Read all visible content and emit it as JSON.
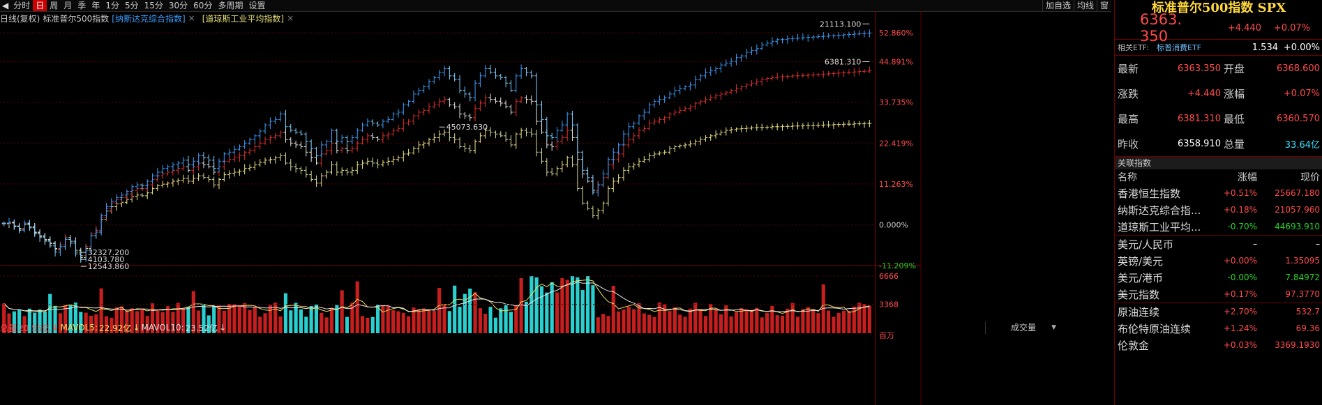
{
  "toolbar": {
    "periods": [
      "分时",
      "日",
      "周",
      "月",
      "季",
      "年",
      "1分",
      "5分",
      "15分",
      "30分",
      "60分",
      "多周期",
      "设置"
    ],
    "active": "日",
    "right": [
      "加自选",
      "均线",
      "窗"
    ]
  },
  "subbar": {
    "mode": "日线(复权)",
    "main_index": "标准普尔500指数",
    "overlay1": "[纳斯达克综合指数]",
    "overlay2": "[道琼斯工业平均指数]",
    "close_glyph": "×"
  },
  "chart_data": {
    "type": "line",
    "title": "",
    "yaxis_ticks": [
      "52.860%",
      "44.891%",
      "33.735%",
      "22.419%",
      "11.263%",
      "0.000%",
      "-11.209%"
    ],
    "ylim_pct": [
      -11.209,
      52.86
    ],
    "n_bars": 170,
    "series": [
      {
        "name": "纳斯达克综合指数",
        "color": "#3aa0ff",
        "values": [
          0.5,
          0.8,
          -0.5,
          -1.5,
          0.5,
          -0.8,
          -2.5,
          -3.5,
          -4.5,
          -5.8,
          -7.5,
          -6.0,
          -4.0,
          -5.0,
          -8.0,
          -9.5,
          -7.0,
          -3.0,
          -2.0,
          2.5,
          5.0,
          6.5,
          7.5,
          8.2,
          9.2,
          10.5,
          11.0,
          10.8,
          12.0,
          13.5,
          14.5,
          15.5,
          16.0,
          16.5,
          17.0,
          17.8,
          16.5,
          17.5,
          19.0,
          18.5,
          17.8,
          15.5,
          17.5,
          19.5,
          20.0,
          20.8,
          21.5,
          22.5,
          23.5,
          24.5,
          25.8,
          27.5,
          28.5,
          29.0,
          30.5,
          27.0,
          26.0,
          25.5,
          25.0,
          23.0,
          21.0,
          19.0,
          22.0,
          23.0,
          26.0,
          23.0,
          24.0,
          23.0,
          24.0,
          26.0,
          27.5,
          28.5,
          28.0,
          27.5,
          28.5,
          29.0,
          30.5,
          31.0,
          33.0,
          34.0,
          36.0,
          37.0,
          38.0,
          39.5,
          40.5,
          42.0,
          43.0,
          41.0,
          40.0,
          37.0,
          36.0,
          35.0,
          39.0,
          41.0,
          43.0,
          42.0,
          41.0,
          40.5,
          39.0,
          37.0,
          41.0,
          43.0,
          42.0,
          41.0,
          33.0,
          29.0,
          24.5,
          24.0,
          26.0,
          27.5,
          30.5,
          27.5,
          20.0,
          15.0,
          13.0,
          9.0,
          11.0,
          14.0,
          18.0,
          20.0,
          22.0,
          25.0,
          27.0,
          28.0,
          30.0,
          31.0,
          33.0,
          34.0,
          34.5,
          35.0,
          36.0,
          37.0,
          37.5,
          38.0,
          38.5,
          40.0,
          41.0,
          42.0,
          42.5,
          43.0,
          44.0,
          44.5,
          45.0,
          46.0,
          46.5,
          47.5,
          48.0,
          48.5,
          49.5,
          50.0,
          50.5,
          51.0,
          51.0,
          51.2,
          51.3,
          51.4,
          51.5,
          51.6,
          51.7,
          51.8,
          51.9,
          52.0,
          52.1,
          52.2,
          52.3,
          52.4,
          52.5,
          52.6,
          52.7,
          52.8
        ]
      },
      {
        "name": "标准普尔500指数",
        "color": "#e23030",
        "values": [
          0.5,
          0.6,
          -0.3,
          -1.0,
          0.3,
          -0.5,
          -2.0,
          -3.0,
          -4.0,
          -5.0,
          -6.5,
          -5.5,
          -3.5,
          -4.5,
          -7.0,
          -8.5,
          -6.0,
          -2.5,
          -1.5,
          2.0,
          4.5,
          6.0,
          7.0,
          7.5,
          8.5,
          9.5,
          10.0,
          10.0,
          11.0,
          12.5,
          13.5,
          14.0,
          14.5,
          15.0,
          15.5,
          16.0,
          15.0,
          16.0,
          17.0,
          16.5,
          16.0,
          14.5,
          16.0,
          17.5,
          18.0,
          18.5,
          19.0,
          20.0,
          20.5,
          21.5,
          22.5,
          23.5,
          24.0,
          24.5,
          25.5,
          23.5,
          22.5,
          22.0,
          21.5,
          20.0,
          18.5,
          17.0,
          19.5,
          20.5,
          22.5,
          20.5,
          21.0,
          20.5,
          21.0,
          22.5,
          23.5,
          24.5,
          24.0,
          23.5,
          24.5,
          25.0,
          26.0,
          26.5,
          28.0,
          28.5,
          30.0,
          31.0,
          31.5,
          32.5,
          33.0,
          34.0,
          34.5,
          33.0,
          32.5,
          30.5,
          30.0,
          29.5,
          32.0,
          33.5,
          35.0,
          34.5,
          34.0,
          33.5,
          32.5,
          31.0,
          34.0,
          35.0,
          34.5,
          34.0,
          28.5,
          25.5,
          22.0,
          21.5,
          23.0,
          24.0,
          26.0,
          24.0,
          18.0,
          14.0,
          12.0,
          9.5,
          11.0,
          13.0,
          16.5,
          18.0,
          19.5,
          22.0,
          23.5,
          24.5,
          26.0,
          26.5,
          28.0,
          28.5,
          29.0,
          29.5,
          30.5,
          31.0,
          31.5,
          32.0,
          32.5,
          33.5,
          34.0,
          34.5,
          35.0,
          35.5,
          36.0,
          36.5,
          37.0,
          37.5,
          38.0,
          38.5,
          39.0,
          39.5,
          40.0,
          40.3,
          40.5,
          40.7,
          40.8,
          40.9,
          41.0,
          41.0,
          41.1,
          41.2,
          41.3,
          41.4,
          41.5,
          41.6,
          41.7,
          41.8,
          41.9,
          42.0,
          42.1,
          42.2,
          42.3,
          42.4
        ]
      },
      {
        "name": "道琼斯工业平均指数",
        "color": "#e8e07a",
        "values": [
          0.3,
          0.5,
          -0.5,
          -1.2,
          0.0,
          -0.8,
          -2.2,
          -3.2,
          -4.2,
          -5.2,
          -6.8,
          -6.0,
          -4.0,
          -5.0,
          -7.5,
          -9.0,
          -6.5,
          -3.0,
          -2.0,
          1.5,
          3.8,
          5.0,
          5.8,
          6.2,
          7.0,
          7.8,
          8.2,
          8.0,
          8.8,
          10.0,
          10.8,
          11.2,
          11.5,
          12.0,
          12.3,
          12.8,
          12.0,
          12.8,
          13.5,
          13.0,
          12.5,
          11.0,
          12.5,
          13.8,
          14.2,
          14.5,
          14.8,
          15.5,
          15.8,
          16.5,
          17.2,
          17.8,
          18.0,
          18.5,
          19.0,
          17.0,
          16.0,
          15.5,
          15.0,
          13.8,
          12.5,
          11.5,
          13.5,
          14.5,
          16.5,
          14.5,
          15.0,
          14.5,
          15.0,
          16.5,
          17.0,
          17.5,
          17.0,
          16.5,
          17.2,
          17.5,
          18.0,
          18.5,
          19.5,
          19.8,
          21.0,
          22.0,
          22.5,
          23.5,
          24.0,
          25.0,
          25.5,
          24.0,
          23.5,
          21.5,
          21.0,
          20.5,
          23.0,
          24.5,
          26.0,
          25.5,
          25.0,
          24.5,
          23.5,
          22.0,
          25.0,
          26.0,
          25.5,
          25.0,
          20.0,
          17.5,
          14.5,
          14.0,
          15.5,
          16.5,
          18.5,
          16.5,
          10.0,
          6.0,
          4.5,
          2.5,
          4.0,
          6.0,
          10.0,
          12.0,
          13.0,
          15.0,
          16.0,
          16.5,
          17.5,
          18.0,
          19.0,
          19.5,
          19.8,
          20.0,
          21.0,
          21.5,
          21.8,
          22.0,
          22.3,
          23.0,
          23.5,
          24.0,
          24.5,
          25.0,
          25.5,
          26.0,
          26.2,
          26.4,
          26.5,
          26.6,
          26.7,
          26.8,
          26.8,
          26.9,
          27.0,
          27.0,
          27.1,
          27.1,
          27.2,
          27.2,
          27.3,
          27.3,
          27.4,
          27.4,
          27.5,
          27.5,
          27.6,
          27.6,
          27.7,
          27.7,
          27.8,
          27.8,
          27.9,
          27.9
        ]
      }
    ],
    "annotations": [
      {
        "text": "21113.100",
        "series": 0,
        "kind": "max"
      },
      {
        "text": "6381.310",
        "series": 1,
        "kind": "max"
      },
      {
        "text": "45073.630",
        "bar": 85,
        "series": 2
      },
      {
        "text": "32327.200",
        "bar": 15,
        "series": 2
      },
      {
        "text": "4103.780",
        "bar": 15,
        "series": 1
      },
      {
        "text": "12543.860",
        "bar": 15,
        "series": 0
      }
    ],
    "volume": {
      "label": "总量",
      "total": "20.55亿",
      "ma5_label": "MAVOL5:",
      "ma5": "22.92亿",
      "ma10_label": "MAVOL10:",
      "ma10": "23.52亿",
      "ticks": [
        "6666",
        "3368",
        "百万"
      ],
      "max": 6666
    },
    "grid": true
  },
  "volsel": {
    "label": "成交量",
    "arrow": "▼"
  },
  "panel": {
    "title": "标准普尔500指数 SPX",
    "price": "6363. 350",
    "change": "+4.440",
    "change_pct": "+0.07%",
    "etf": {
      "label": "相关ETF:",
      "name": "标普消费ETF",
      "price": "1.534",
      "change": "+0.00%"
    },
    "quote": [
      {
        "l1": "最新",
        "v1": "6363.350",
        "c1": "red",
        "l2": "开盘",
        "v2": "6368.600",
        "c2": "red"
      },
      {
        "l1": "涨跌",
        "v1": "+4.440",
        "c1": "red",
        "l2": "涨幅",
        "v2": "+0.07%",
        "c2": "red"
      },
      {
        "l1": "最高",
        "v1": "6381.310",
        "c1": "red",
        "l2": "最低",
        "v2": "6360.570",
        "c2": "red"
      },
      {
        "l1": "昨收",
        "v1": "6358.910",
        "c1": "white",
        "l2": "总量",
        "v2": "33.64亿",
        "c2": "cyan"
      }
    ],
    "related_title": "关联指数",
    "headers": [
      "名称",
      "涨幅",
      "现价"
    ],
    "group1": [
      {
        "name": "香港恒生指数",
        "pct": "+0.51%",
        "price": "25667.180",
        "c": "red"
      },
      {
        "name": "纳斯达克综合指...",
        "pct": "+0.18%",
        "price": "21057.960",
        "c": "red"
      },
      {
        "name": "道琼斯工业平均...",
        "pct": "-0.70%",
        "price": "44693.910",
        "c": "green"
      }
    ],
    "group2": [
      {
        "name": "美元/人民币",
        "pct": "–",
        "price": "–",
        "c": "white"
      },
      {
        "name": "英镑/美元",
        "pct": "+0.00%",
        "price": "1.35095",
        "c": "red"
      },
      {
        "name": "美元/港币",
        "pct": "-0.00%",
        "price": "7.84972",
        "c": "green"
      },
      {
        "name": "美元指数",
        "pct": "+0.17%",
        "price": "97.3770",
        "c": "red"
      }
    ],
    "group3": [
      {
        "name": "原油连续",
        "pct": "+2.70%",
        "price": "532.7",
        "c": "red"
      },
      {
        "name": "布伦特原油连续",
        "pct": "+1.24%",
        "price": "69.36",
        "c": "red"
      },
      {
        "name": "伦敦金",
        "pct": "+0.03%",
        "price": "3369.1930",
        "c": "red"
      }
    ]
  }
}
